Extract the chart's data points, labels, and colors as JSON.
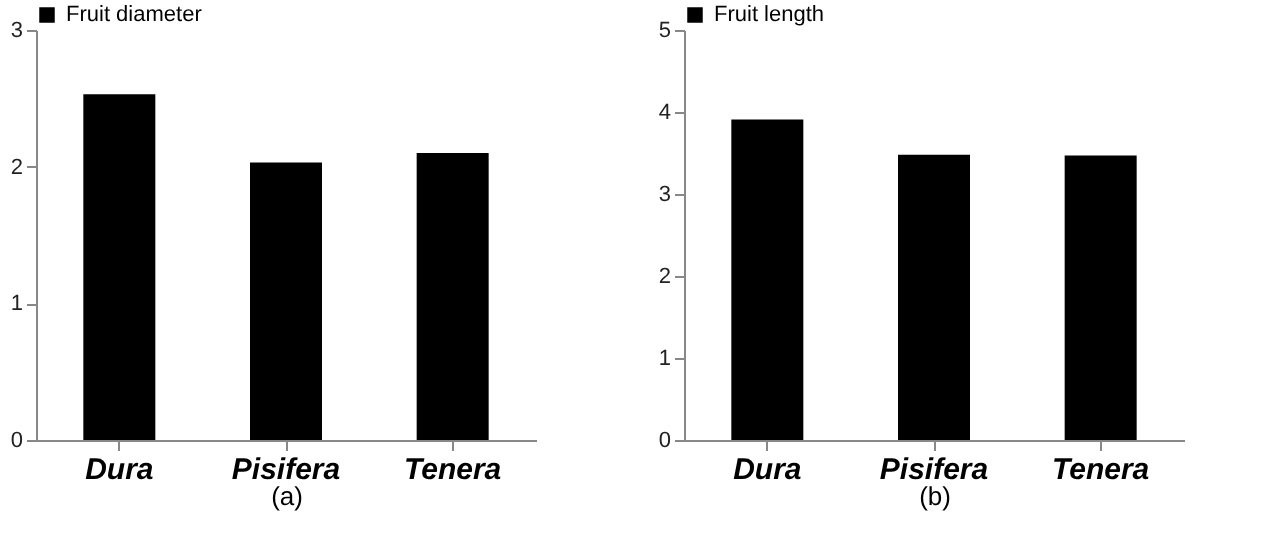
{
  "chart_data": [
    {
      "type": "bar",
      "categories": [
        "Dura",
        "Pisifera",
        "Tenera"
      ],
      "xlabel": "(a)",
      "legend": "top",
      "ylim": [
        0,
        3
      ],
      "yticks": [
        0,
        1,
        2,
        3
      ],
      "series": [
        {
          "name": "Fruit diameter",
          "color": "#000000",
          "values": [
            2.53,
            2.03,
            2.1
          ]
        }
      ]
    },
    {
      "type": "bar",
      "categories": [
        "Dura",
        "Pisifera",
        "Tenera"
      ],
      "xlabel": "(b)",
      "legend": "top",
      "ylim": [
        0,
        5
      ],
      "yticks": [
        0,
        1,
        2,
        3,
        4,
        5
      ],
      "series": [
        {
          "name": "Fruit length",
          "color": "#000000",
          "values": [
            3.91,
            3.48,
            3.47
          ]
        }
      ]
    }
  ]
}
